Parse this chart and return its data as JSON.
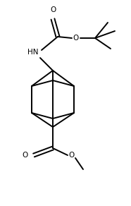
{
  "background": "#ffffff",
  "line_color": "#000000",
  "line_width": 1.4,
  "font_size": 7.5,
  "fig_width": 1.86,
  "fig_height": 2.92,
  "dpi": 100,
  "xlim": [
    0,
    186
  ],
  "ylim": [
    0,
    292
  ]
}
